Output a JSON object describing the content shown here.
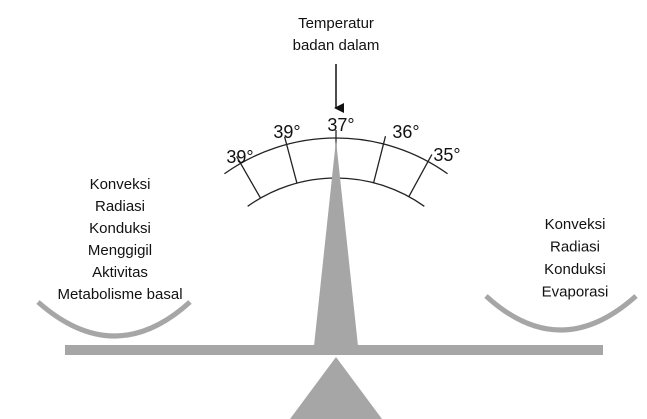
{
  "top_label": {
    "lines": [
      "Temperatur",
      "badan dalam"
    ]
  },
  "gauge": {
    "labels": [
      "39°",
      "39°",
      "37°",
      "36°",
      "35°"
    ]
  },
  "left_pan": {
    "items": [
      "Konveksi",
      "Radiasi",
      "Konduksi",
      "Menggigil",
      "Aktivitas",
      "Metabolisme basal"
    ]
  },
  "right_pan": {
    "items": [
      "Konveksi",
      "Radiasi",
      "Konduksi",
      "Evaporasi"
    ]
  }
}
